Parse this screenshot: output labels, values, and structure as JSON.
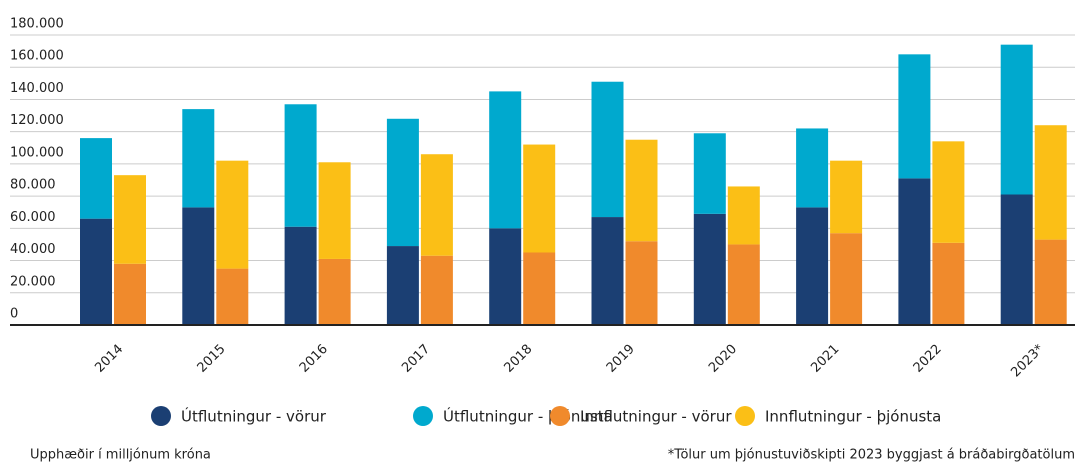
{
  "chart_data": {
    "type": "grouped_stacked_bar",
    "categories": [
      "2014",
      "2015",
      "2016",
      "2017",
      "2018",
      "2019",
      "2020",
      "2021",
      "2022",
      "2023*"
    ],
    "series": [
      {
        "name": "Útflutningur - vörur",
        "color": "#1b3f73",
        "stack": "export",
        "values": [
          66000,
          73000,
          61000,
          49000,
          60000,
          67000,
          69000,
          73000,
          91000,
          81000
        ]
      },
      {
        "name": "Útflutningur - þjónusta",
        "color": "#00a9ce",
        "stack": "export",
        "values": [
          50000,
          61000,
          76000,
          79000,
          85000,
          84000,
          50000,
          49000,
          77000,
          93000
        ]
      },
      {
        "name": "Innflutningur - vörur",
        "color": "#f08a2c",
        "stack": "import",
        "values": [
          38000,
          35000,
          41000,
          43000,
          45000,
          52000,
          50000,
          57000,
          51000,
          53000
        ]
      },
      {
        "name": "Innflutningur - þjónusta",
        "color": "#fbbf16",
        "stack": "import",
        "values": [
          55000,
          67000,
          60000,
          63000,
          67000,
          63000,
          36000,
          45000,
          63000,
          71000
        ]
      }
    ],
    "ylim": [
      0,
      180000
    ],
    "yticks": [
      0,
      {
        "value": 20000,
        "label": "20.000"
      },
      {
        "value": 40000,
        "label": "40.000"
      },
      {
        "value": 60000,
        "label": "60.000"
      },
      {
        "value": 80000,
        "label": "80.000"
      },
      {
        "value": 100000,
        "label": "100.000"
      },
      {
        "value": 120000,
        "label": "120.000"
      },
      {
        "value": 140000,
        "label": "140.000"
      },
      {
        "value": 160000,
        "label": "160.000"
      },
      {
        "value": 180000,
        "label": "180.000"
      }
    ],
    "grid": true,
    "legend": "bottom",
    "notes": [
      "Upphæðir í milljónum króna",
      "*Tölur um þjónustuviðskipti 2023 byggjast á bráðabirgðatölum"
    ]
  }
}
